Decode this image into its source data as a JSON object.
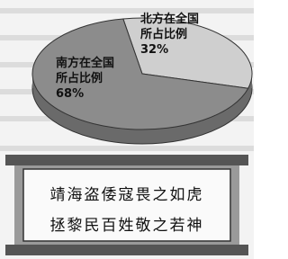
{
  "chart_data": {
    "type": "pie",
    "categories": [
      "北方在全国所占比例",
      "南方在全国所占比例"
    ],
    "values": [
      32,
      68
    ],
    "value_labels": [
      "32%",
      "68%"
    ],
    "colors": [
      "#cfcfcf",
      "#8c8c8c"
    ]
  },
  "scroll": {
    "lines": [
      "靖海盗倭寇畏之如虎",
      "拯黎民百姓敬之若神"
    ]
  }
}
